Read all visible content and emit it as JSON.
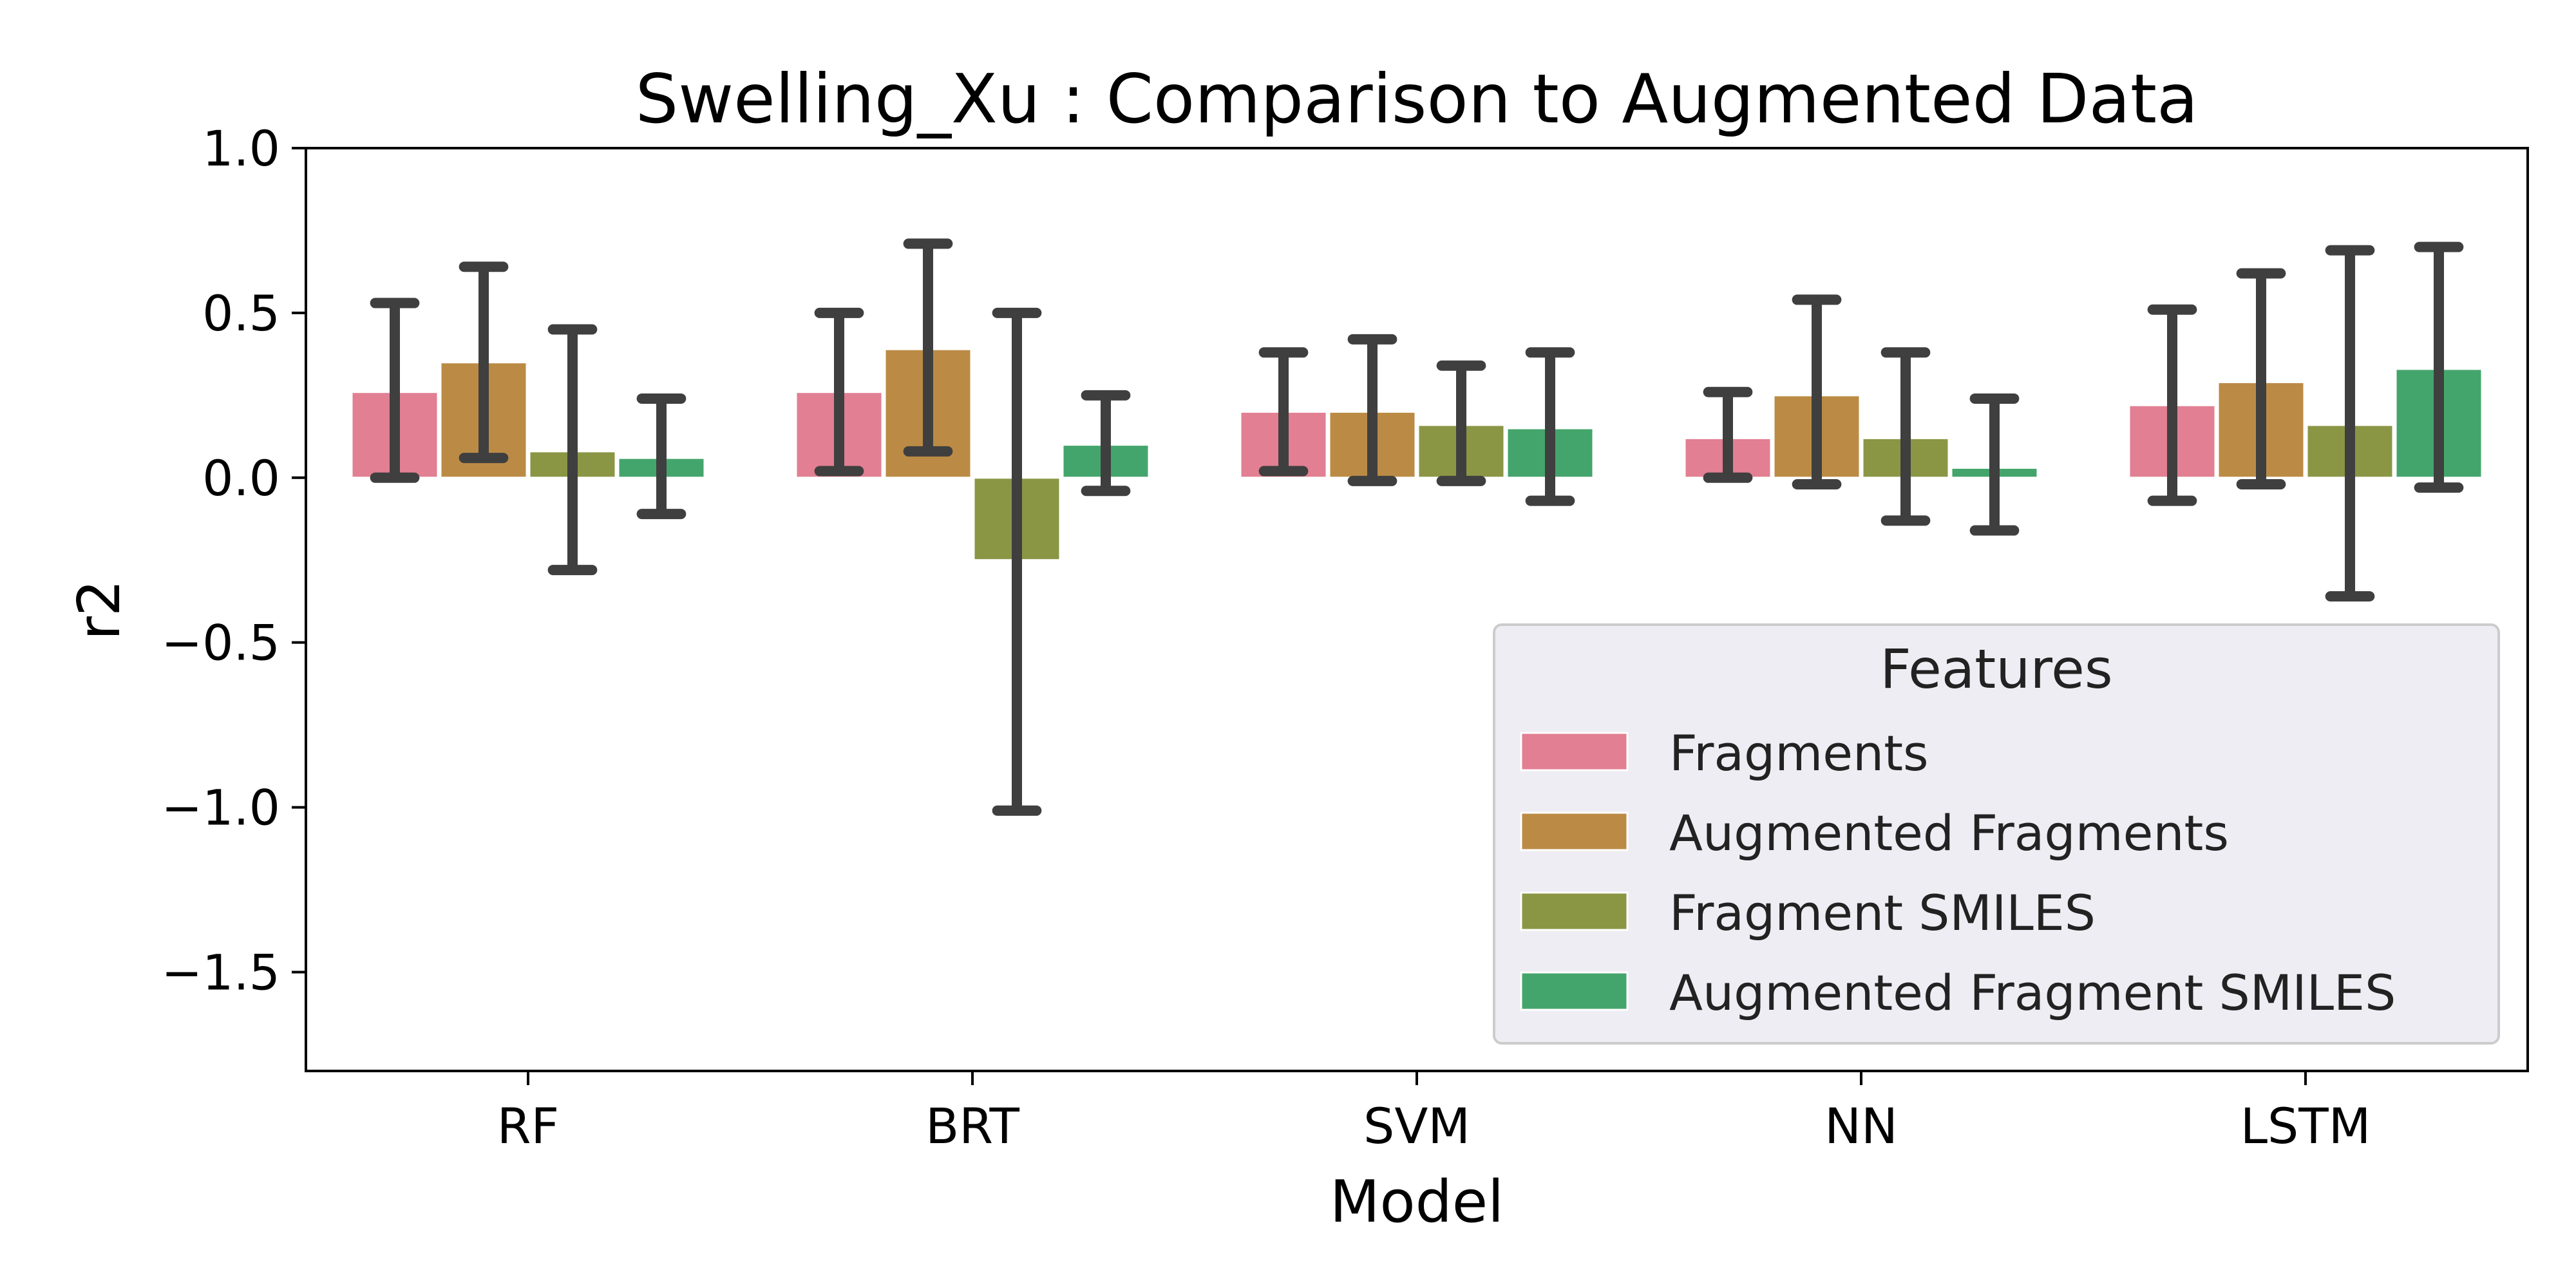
{
  "chart_data": {
    "type": "bar",
    "title": "Swelling_Xu : Comparison to Augmented Data",
    "xlabel": "Model",
    "ylabel": "r2",
    "ylim": [
      -1.8,
      1.0
    ],
    "yticks": [
      1.0,
      0.5,
      0.0,
      -0.5,
      -1.0,
      -1.5
    ],
    "ytick_labels": [
      "1.0",
      "0.5",
      "0.0",
      "−0.5",
      "−1.0",
      "−1.5"
    ],
    "categories": [
      "RF",
      "BRT",
      "SVM",
      "NN",
      "LSTM"
    ],
    "grid": false,
    "legend": {
      "title": "Features",
      "position": "lower-right"
    },
    "error_bar_color": "#3f3f3f",
    "series": [
      {
        "name": "Fragments",
        "color": "#e27f92",
        "values": [
          0.26,
          0.26,
          0.2,
          0.12,
          0.22
        ],
        "err_low": [
          0.0,
          0.02,
          0.02,
          0.0,
          -0.07
        ],
        "err_high": [
          0.53,
          0.5,
          0.38,
          0.26,
          0.51
        ]
      },
      {
        "name": "Augmented Fragments",
        "color": "#bb8b45",
        "values": [
          0.35,
          0.39,
          0.2,
          0.25,
          0.29
        ],
        "err_low": [
          0.06,
          0.08,
          -0.01,
          -0.02,
          -0.02
        ],
        "err_high": [
          0.64,
          0.71,
          0.42,
          0.54,
          0.62
        ]
      },
      {
        "name": "Fragment SMILES",
        "color": "#8b9645",
        "values": [
          0.08,
          -0.25,
          0.16,
          0.12,
          0.16
        ],
        "err_low": [
          -0.28,
          -1.01,
          -0.01,
          -0.13,
          -0.36
        ],
        "err_high": [
          0.45,
          0.5,
          0.34,
          0.38,
          0.69
        ]
      },
      {
        "name": "Augmented Fragment SMILES",
        "color": "#44a56c",
        "values": [
          0.06,
          0.1,
          0.15,
          0.03,
          0.33
        ],
        "err_low": [
          -0.11,
          -0.04,
          -0.07,
          -0.16,
          -0.03
        ],
        "err_high": [
          0.24,
          0.25,
          0.38,
          0.24,
          0.7
        ]
      }
    ]
  }
}
